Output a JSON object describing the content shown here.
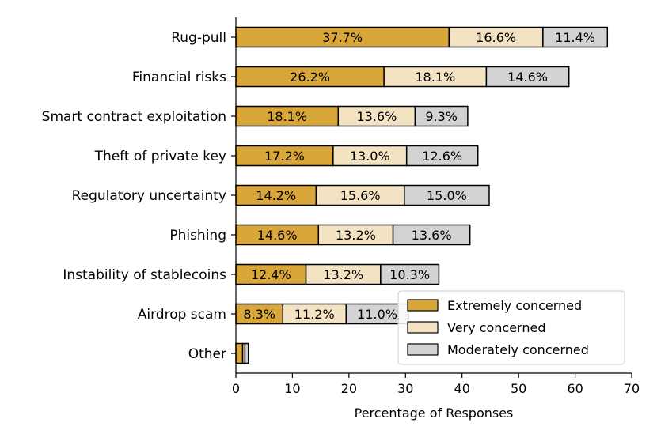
{
  "chart_data": {
    "type": "bar",
    "orientation": "horizontal",
    "stacked": true,
    "title": "",
    "xlabel": "Percentage of Responses",
    "ylabel": "",
    "xlim": [
      0,
      70
    ],
    "xticks": [
      "0",
      "10",
      "20",
      "30",
      "40",
      "50",
      "60",
      "70"
    ],
    "categories": [
      "Rug-pull",
      "Financial risks",
      "Smart contract exploitation",
      "Theft of private key",
      "Regulatory uncertainty",
      "Phishing",
      "Instability of stablecoins",
      "Airdrop scam",
      "Other"
    ],
    "series": [
      {
        "name": "Extremely concerned",
        "color": "#d9a63a",
        "values": [
          37.7,
          26.2,
          18.1,
          17.2,
          14.2,
          14.6,
          12.4,
          8.3,
          1.2
        ],
        "labels": [
          "37.7%",
          "26.2%",
          "18.1%",
          "17.2%",
          "14.2%",
          "14.6%",
          "12.4%",
          "8.3%",
          ""
        ]
      },
      {
        "name": "Very concerned",
        "color": "#f3e3c3",
        "values": [
          16.6,
          18.1,
          13.6,
          13.0,
          15.6,
          13.2,
          13.2,
          11.2,
          0.4
        ],
        "labels": [
          "16.6%",
          "18.1%",
          "13.6%",
          "13.0%",
          "15.6%",
          "13.2%",
          "13.2%",
          "11.2%",
          ""
        ]
      },
      {
        "name": "Moderately concerned",
        "color": "#d3d3d3",
        "values": [
          11.4,
          14.6,
          9.3,
          12.6,
          15.0,
          13.6,
          10.3,
          11.0,
          0.6
        ],
        "labels": [
          "11.4%",
          "14.6%",
          "9.3%",
          "12.6%",
          "15.0%",
          "13.6%",
          "10.3%",
          "11.0%",
          ""
        ]
      }
    ],
    "legend": {
      "position": "lower-right",
      "entries": [
        "Extremely concerned",
        "Very concerned",
        "Moderately concerned"
      ]
    },
    "grid": false
  }
}
